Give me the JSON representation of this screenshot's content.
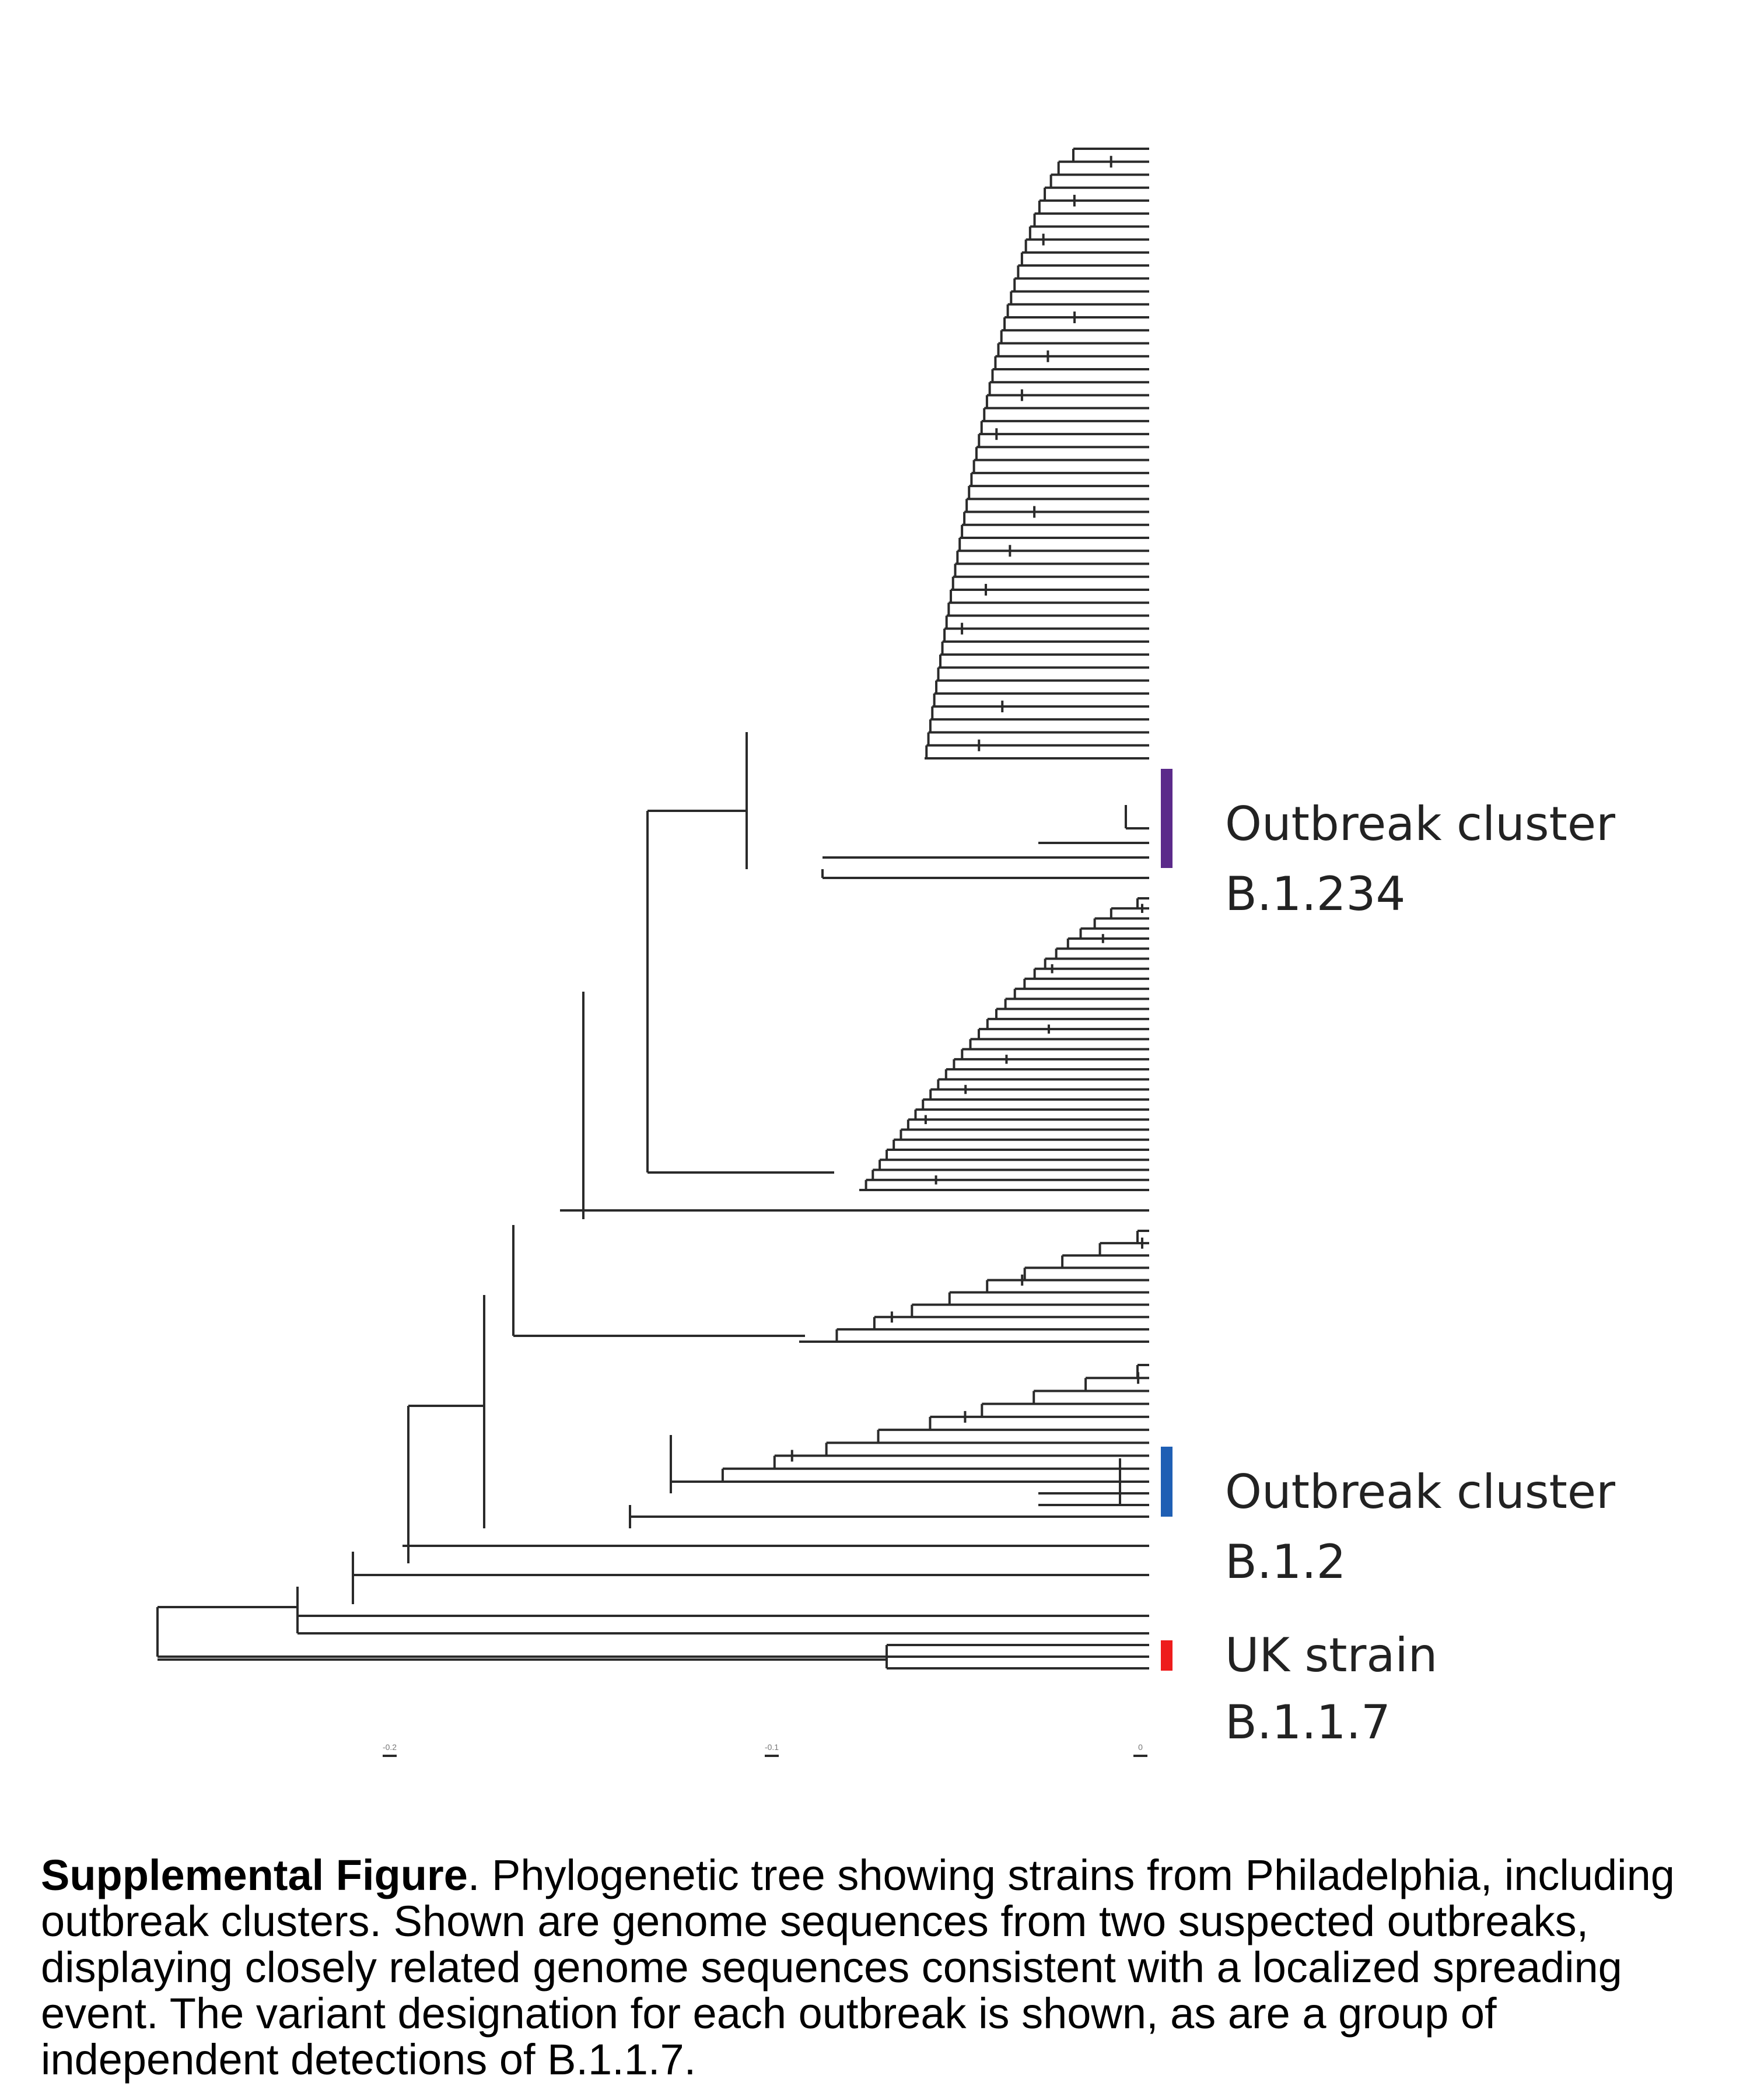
{
  "annotations": [
    {
      "line1": "Outbreak cluster",
      "line2": "B.1.234",
      "color": "#5b2a8a"
    },
    {
      "line1": "Outbreak cluster",
      "line2": "B.1.2",
      "color": "#1f5fb4"
    },
    {
      "line1": "UK strain",
      "line2": "B.1.1.7",
      "color": "#ee1c1c"
    }
  ],
  "caption": {
    "bold": "Supplemental Figure",
    "text": ". Phylogenetic tree showing strains from Philadelphia, including outbreak clusters. Shown are genome sequences from two suspected outbreaks, displaying closely related genome sequences consistent with a localized spreading event. The variant designation for each outbreak is shown, as are a group of independent detections of B.1.1.7."
  },
  "scale_ticks": [
    "-0.2",
    "-0.1",
    "0"
  ]
}
